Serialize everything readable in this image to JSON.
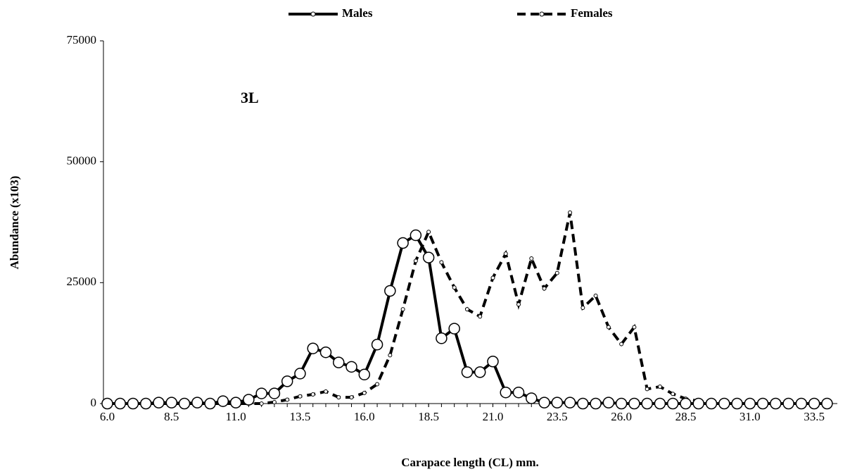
{
  "chart_data": {
    "type": "line",
    "annotation": "3L",
    "xlabel": "Carapace length (CL) mm.",
    "ylabel": "Abundance (x103)",
    "x": [
      6,
      6.5,
      7,
      7.5,
      8,
      8.5,
      9,
      9.5,
      10,
      10.5,
      11,
      11.5,
      12,
      12.5,
      13,
      13.5,
      14,
      14.5,
      15,
      15.5,
      16,
      16.5,
      17,
      17.5,
      18,
      18.5,
      19,
      19.5,
      20,
      20.5,
      21,
      21.5,
      22,
      22.5,
      23,
      23.5,
      24,
      24.5,
      25,
      25.5,
      26,
      26.5,
      27,
      27.5,
      28,
      28.5,
      29,
      29.5,
      30,
      30.5,
      31,
      31.5,
      32,
      32.5,
      33,
      33.5,
      34
    ],
    "series": [
      {
        "name": "Males",
        "color": "#000000",
        "values": [
          0,
          0,
          0,
          0,
          200,
          200,
          0,
          200,
          0,
          500,
          200,
          800,
          2100,
          2100,
          4600,
          6200,
          11400,
          10600,
          8500,
          7600,
          6000,
          12200,
          23300,
          33200,
          34800,
          30200,
          13500,
          15500,
          6500,
          6500,
          8700,
          2300,
          2300,
          1100,
          200,
          200,
          200,
          0,
          0,
          200,
          0,
          0,
          0,
          0,
          0,
          0,
          0,
          0,
          0,
          0,
          0,
          0,
          0,
          0,
          0,
          0,
          0
        ]
      },
      {
        "name": "Females",
        "color": "#000000",
        "values": [
          0,
          0,
          0,
          0,
          0,
          0,
          0,
          0,
          0,
          0,
          0,
          0,
          0,
          300,
          800,
          1500,
          1900,
          2500,
          1300,
          1300,
          2200,
          4000,
          10000,
          19500,
          29500,
          35500,
          29200,
          24000,
          19500,
          18000,
          26000,
          31000,
          20500,
          30000,
          23800,
          27000,
          39500,
          19800,
          22300,
          15800,
          12300,
          15800,
          3000,
          3500,
          2000,
          1000,
          500,
          300,
          300,
          0,
          0,
          0,
          0,
          0,
          0,
          0,
          0
        ]
      }
    ],
    "xlim": [
      5.85,
      34.4
    ],
    "xticks": [
      {
        "value": 6,
        "label": "6.0"
      },
      {
        "value": 8.5,
        "label": "8.5"
      },
      {
        "value": 11,
        "label": "11.0"
      },
      {
        "value": 13.5,
        "label": "13.5"
      },
      {
        "value": 16,
        "label": "16.0"
      },
      {
        "value": 18.5,
        "label": "18.5"
      },
      {
        "value": 21,
        "label": "21.0"
      },
      {
        "value": 23.5,
        "label": "23.5"
      },
      {
        "value": 26,
        "label": "26.0"
      },
      {
        "value": 28.5,
        "label": "28.5"
      },
      {
        "value": 31,
        "label": "31.0"
      },
      {
        "value": 33.5,
        "label": "33.5"
      }
    ],
    "ylim": [
      0,
      75000
    ],
    "yticks": [
      0,
      25000,
      50000,
      75000
    ],
    "grid": false
  }
}
